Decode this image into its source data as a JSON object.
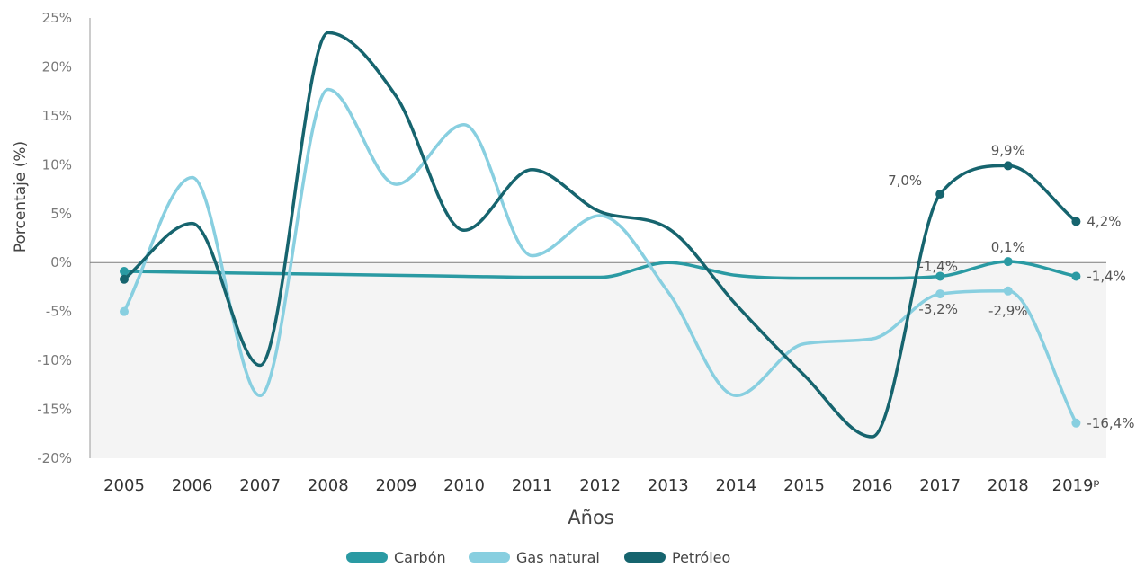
{
  "chart_data": {
    "type": "line",
    "xlabel": "Años",
    "ylabel": "Porcentaje (%)",
    "ylim": [
      -20,
      25
    ],
    "yticks": [
      "25%",
      "20%",
      "15%",
      "10%",
      "5%",
      "0%",
      "-5%",
      "-10%",
      "-15%",
      "-20%"
    ],
    "categories": [
      "2005",
      "2006",
      "2007",
      "2008",
      "2009",
      "2010",
      "2011",
      "2012",
      "2013",
      "2014",
      "2015",
      "2016",
      "2017",
      "2018",
      "2019ᵖ"
    ],
    "legend_position": "bottom",
    "series": [
      {
        "name": "Carbón",
        "color": "#2a9aa3",
        "values": [
          -0.9,
          -1.0,
          -1.1,
          -1.2,
          -1.3,
          -1.4,
          -1.5,
          -1.5,
          0.0,
          -1.3,
          -1.6,
          -1.6,
          -1.4,
          0.1,
          -1.4
        ]
      },
      {
        "name": "Gas natural",
        "color": "#88cfe0",
        "values": [
          -5.0,
          8.7,
          -13.6,
          17.7,
          8.0,
          14.1,
          0.7,
          4.8,
          -3.0,
          -13.6,
          -8.3,
          -7.8,
          -3.2,
          -2.9,
          -16.4
        ]
      },
      {
        "name": "Petróleo",
        "color": "#16646e",
        "values": [
          -1.7,
          4.0,
          -10.5,
          23.5,
          17.0,
          3.3,
          9.5,
          5.2,
          3.5,
          -4.3,
          -11.5,
          -17.8,
          7.0,
          9.9,
          4.2
        ]
      }
    ],
    "annotations": [
      {
        "series": "Petróleo",
        "category": "2017",
        "text": "7,0%"
      },
      {
        "series": "Petróleo",
        "category": "2018",
        "text": "9,9%"
      },
      {
        "series": "Petróleo",
        "category": "2019ᵖ",
        "text": "4,2%"
      },
      {
        "series": "Carbón",
        "category": "2017",
        "text": "-1,4%"
      },
      {
        "series": "Carbón",
        "category": "2018",
        "text": "0,1%"
      },
      {
        "series": "Carbón",
        "category": "2019ᵖ",
        "text": "-1,4%"
      },
      {
        "series": "Gas natural",
        "category": "2017",
        "text": "-3,2%"
      },
      {
        "series": "Gas natural",
        "category": "2018",
        "text": "-2,9%"
      },
      {
        "series": "Gas natural",
        "category": "2019ᵖ",
        "text": "-16,4%"
      }
    ],
    "negative_region_fill": "#f4f4f4",
    "zero_line_color": "#7d7d7d"
  }
}
